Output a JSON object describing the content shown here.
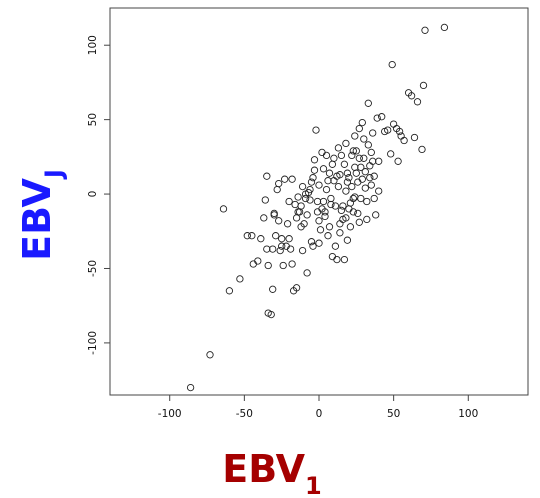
{
  "chart_data": {
    "type": "scatter",
    "xlim": [
      -140,
      140
    ],
    "ylim": [
      -135,
      125
    ],
    "xticks": [
      -100,
      -50,
      0,
      50,
      100
    ],
    "yticks": [
      -100,
      -50,
      0,
      50,
      100
    ],
    "grid": false,
    "xlabel": {
      "main": "EBV",
      "sub": "1",
      "color": "#a50000"
    },
    "ylabel": {
      "main": "EBV",
      "sub": "J",
      "color": "#1a1aff"
    },
    "points": [
      [
        -86,
        -130
      ],
      [
        -73,
        -108
      ],
      [
        -60,
        -65
      ],
      [
        -64,
        -10
      ],
      [
        -53,
        -57
      ],
      [
        -48,
        -28
      ],
      [
        -45,
        -28
      ],
      [
        -44,
        -47
      ],
      [
        -41,
        -45
      ],
      [
        -39,
        -30
      ],
      [
        -37,
        -16
      ],
      [
        -36,
        -4
      ],
      [
        -35,
        12
      ],
      [
        -35,
        -37
      ],
      [
        -34,
        -48
      ],
      [
        -34,
        -80
      ],
      [
        -32,
        -81
      ],
      [
        -31,
        -37
      ],
      [
        -31,
        -64
      ],
      [
        -30,
        -13
      ],
      [
        -29,
        -28
      ],
      [
        -28,
        3
      ],
      [
        -27,
        7
      ],
      [
        -27,
        -18
      ],
      [
        -26,
        -38
      ],
      [
        -25,
        -30
      ],
      [
        -24,
        -48
      ],
      [
        -23,
        10
      ],
      [
        -22,
        -35
      ],
      [
        -21,
        -20
      ],
      [
        -20,
        -5
      ],
      [
        -19,
        -37
      ],
      [
        -18,
        10
      ],
      [
        -17,
        -65
      ],
      [
        -16,
        -7
      ],
      [
        -15,
        -16
      ],
      [
        -15,
        -63
      ],
      [
        -14,
        -2
      ],
      [
        -13,
        -12
      ],
      [
        -12,
        -8
      ],
      [
        -11,
        5
      ],
      [
        -10,
        -20
      ],
      [
        -9,
        -3
      ],
      [
        -8,
        -14
      ],
      [
        -8,
        -53
      ],
      [
        -7,
        1
      ],
      [
        -6,
        -4
      ],
      [
        -5,
        8
      ],
      [
        -5,
        -32
      ],
      [
        -4,
        -35
      ],
      [
        -4,
        11
      ],
      [
        -3,
        23
      ],
      [
        -2,
        43
      ],
      [
        -1,
        -12
      ],
      [
        0,
        -18
      ],
      [
        0,
        -33
      ],
      [
        1,
        -24
      ],
      [
        2,
        28
      ],
      [
        3,
        17
      ],
      [
        3,
        -5
      ],
      [
        4,
        -12
      ],
      [
        5,
        3
      ],
      [
        6,
        -28
      ],
      [
        7,
        14
      ],
      [
        8,
        -3
      ],
      [
        9,
        20
      ],
      [
        10,
        9
      ],
      [
        11,
        -35
      ],
      [
        12,
        -44
      ],
      [
        13,
        5
      ],
      [
        14,
        13
      ],
      [
        14,
        -20
      ],
      [
        15,
        26
      ],
      [
        16,
        -8
      ],
      [
        17,
        -44
      ],
      [
        18,
        2
      ],
      [
        18,
        34
      ],
      [
        19,
        14
      ],
      [
        20,
        -10
      ],
      [
        21,
        -22
      ],
      [
        22,
        26
      ],
      [
        22,
        5
      ],
      [
        23,
        -3
      ],
      [
        24,
        39
      ],
      [
        24,
        18
      ],
      [
        25,
        29
      ],
      [
        26,
        8
      ],
      [
        27,
        24
      ],
      [
        27,
        -19
      ],
      [
        28,
        -3
      ],
      [
        29,
        48
      ],
      [
        30,
        37
      ],
      [
        31,
        15
      ],
      [
        32,
        -5
      ],
      [
        32,
        -17
      ],
      [
        33,
        61
      ],
      [
        34,
        19
      ],
      [
        35,
        28
      ],
      [
        35,
        6
      ],
      [
        36,
        41
      ],
      [
        37,
        12
      ],
      [
        38,
        -14
      ],
      [
        39,
        51
      ],
      [
        40,
        2
      ],
      [
        42,
        52
      ],
      [
        44,
        42
      ],
      [
        46,
        43
      ],
      [
        48,
        27
      ],
      [
        49,
        87
      ],
      [
        50,
        47
      ],
      [
        52,
        44
      ],
      [
        53,
        22
      ],
      [
        54,
        42
      ],
      [
        55,
        39
      ],
      [
        57,
        36
      ],
      [
        60,
        68
      ],
      [
        62,
        66
      ],
      [
        64,
        38
      ],
      [
        66,
        62
      ],
      [
        69,
        30
      ],
      [
        70,
        73
      ],
      [
        71,
        110
      ],
      [
        84,
        112
      ],
      [
        2,
        -10
      ],
      [
        6,
        9
      ],
      [
        8,
        -7
      ],
      [
        -12,
        -22
      ],
      [
        17,
        20
      ],
      [
        25,
        14
      ],
      [
        30,
        24
      ],
      [
        -20,
        -30
      ],
      [
        -6,
        3
      ],
      [
        11,
        -8
      ],
      [
        16,
        -17
      ],
      [
        20,
        11
      ],
      [
        26,
        -13
      ],
      [
        31,
        4
      ],
      [
        36,
        22
      ],
      [
        -18,
        -47
      ],
      [
        -9,
        0
      ],
      [
        13,
        31
      ],
      [
        19,
        -31
      ],
      [
        23,
        29
      ],
      [
        28,
        18
      ],
      [
        33,
        33
      ],
      [
        -3,
        16
      ],
      [
        5,
        26
      ],
      [
        9,
        -42
      ],
      [
        15,
        -11
      ],
      [
        21,
        -6
      ],
      [
        27,
        44
      ],
      [
        -11,
        -38
      ],
      [
        0,
        6
      ],
      [
        7,
        -22
      ],
      [
        12,
        12
      ],
      [
        18,
        -16
      ],
      [
        24,
        -2
      ],
      [
        34,
        11
      ],
      [
        40,
        22
      ],
      [
        -25,
        -35
      ],
      [
        -14,
        -12
      ],
      [
        -1,
        -5
      ],
      [
        4,
        -15
      ],
      [
        10,
        24
      ],
      [
        14,
        -26
      ],
      [
        19,
        8
      ],
      [
        23,
        -12
      ],
      [
        29,
        10
      ],
      [
        37,
        -3
      ],
      [
        -30,
        -14
      ]
    ]
  }
}
